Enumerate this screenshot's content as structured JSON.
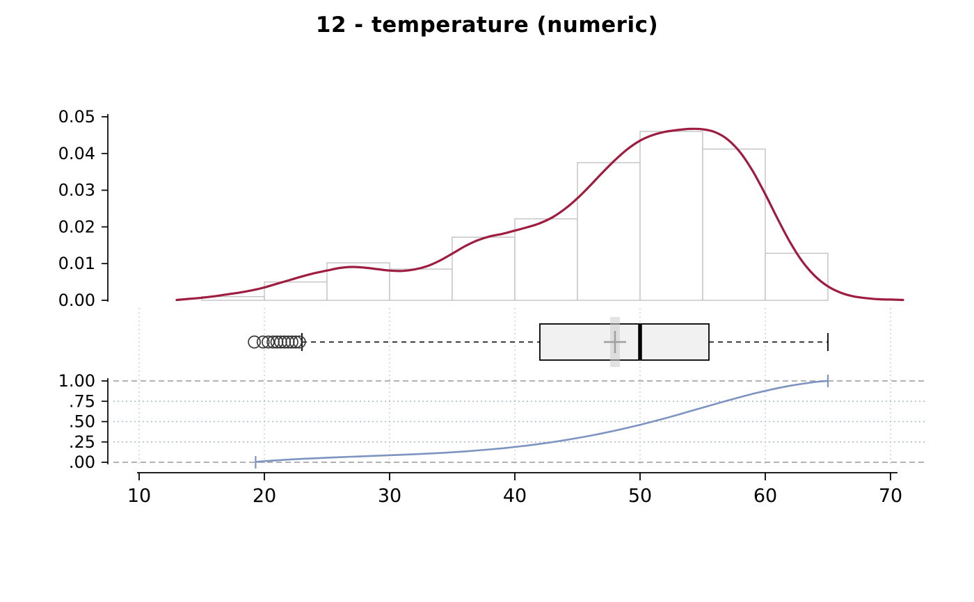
{
  "chart_data": [
    {
      "panel": "histogram_with_density",
      "type": "bar",
      "title": "12 - temperature (numeric)",
      "xlim": [
        10,
        72
      ],
      "ylim": [
        0,
        0.05
      ],
      "grid": false,
      "y_ticks": [
        {
          "value": 0.0,
          "label": "0.00"
        },
        {
          "value": 0.01,
          "label": "0.01"
        },
        {
          "value": 0.02,
          "label": "0.02"
        },
        {
          "value": 0.03,
          "label": "0.03"
        },
        {
          "value": 0.04,
          "label": "0.04"
        },
        {
          "value": 0.05,
          "label": "0.05"
        }
      ],
      "bar_fill": "#ffffff",
      "bar_stroke": "#c6c6c6",
      "bins": [
        {
          "x0": 15,
          "x1": 20,
          "density": 0.001
        },
        {
          "x0": 20,
          "x1": 25,
          "density": 0.005
        },
        {
          "x0": 25,
          "x1": 30,
          "density": 0.0102
        },
        {
          "x0": 30,
          "x1": 35,
          "density": 0.0085
        },
        {
          "x0": 35,
          "x1": 40,
          "density": 0.0172
        },
        {
          "x0": 40,
          "x1": 45,
          "density": 0.0222
        },
        {
          "x0": 45,
          "x1": 50,
          "density": 0.0375
        },
        {
          "x0": 50,
          "x1": 55,
          "density": 0.046
        },
        {
          "x0": 55,
          "x1": 60,
          "density": 0.0412
        },
        {
          "x0": 60,
          "x1": 65,
          "density": 0.0128
        }
      ],
      "density_curve": {
        "color": "#9e1c3f",
        "points": [
          [
            13,
            0.0001
          ],
          [
            14,
            0.0004
          ],
          [
            15,
            0.0007
          ],
          [
            16,
            0.0011
          ],
          [
            17,
            0.0016
          ],
          [
            18,
            0.0021
          ],
          [
            19,
            0.0027
          ],
          [
            20,
            0.0035
          ],
          [
            21,
            0.0045
          ],
          [
            22,
            0.0055
          ],
          [
            23,
            0.0065
          ],
          [
            24,
            0.0074
          ],
          [
            25,
            0.0081
          ],
          [
            26,
            0.0088
          ],
          [
            27,
            0.0091
          ],
          [
            28,
            0.0089
          ],
          [
            29,
            0.0085
          ],
          [
            30,
            0.0081
          ],
          [
            31,
            0.008
          ],
          [
            32,
            0.0084
          ],
          [
            33,
            0.0093
          ],
          [
            34,
            0.0108
          ],
          [
            35,
            0.0127
          ],
          [
            36,
            0.0147
          ],
          [
            37,
            0.0163
          ],
          [
            38,
            0.0174
          ],
          [
            39,
            0.0181
          ],
          [
            40,
            0.019
          ],
          [
            41,
            0.0199
          ],
          [
            42,
            0.021
          ],
          [
            43,
            0.0226
          ],
          [
            44,
            0.0249
          ],
          [
            45,
            0.0278
          ],
          [
            46,
            0.0312
          ],
          [
            47,
            0.0348
          ],
          [
            48,
            0.0382
          ],
          [
            49,
            0.0412
          ],
          [
            50,
            0.0435
          ],
          [
            51,
            0.045
          ],
          [
            52,
            0.0459
          ],
          [
            53,
            0.0464
          ],
          [
            54,
            0.0467
          ],
          [
            55,
            0.0466
          ],
          [
            56,
            0.0458
          ],
          [
            57,
            0.0438
          ],
          [
            58,
            0.0403
          ],
          [
            59,
            0.0352
          ],
          [
            60,
            0.0289
          ],
          [
            61,
            0.0221
          ],
          [
            62,
            0.0157
          ],
          [
            63,
            0.0104
          ],
          [
            64,
            0.0065
          ],
          [
            65,
            0.0038
          ],
          [
            66,
            0.0021
          ],
          [
            67,
            0.0011
          ],
          [
            68,
            0.0006
          ],
          [
            69,
            0.0003
          ],
          [
            70,
            0.0002
          ],
          [
            71,
            0.0001
          ]
        ]
      }
    },
    {
      "panel": "boxplot",
      "type": "boxplot",
      "outliers": [
        19.2,
        19.9,
        20.3,
        20.7,
        21.0,
        21.3,
        21.6,
        21.9,
        22.2,
        22.5,
        22.8
      ],
      "whisker_low": 23,
      "q1": 42,
      "median": 50,
      "q3": 55.5,
      "whisker_high": 65,
      "mean": 48,
      "box_fill": "#f1f1f1",
      "box_stroke": "#000000",
      "outlier_stroke": "#3a3a3a",
      "mean_marker_color": "#9f9f9f",
      "mean_band_color": "#cccccc"
    },
    {
      "panel": "ecdf",
      "type": "line",
      "color": "#7d94c1",
      "ylim": [
        0,
        1
      ],
      "y_ticks": [
        {
          "value": 0,
          "label": ".00"
        },
        {
          "value": 0.25,
          "label": ".25"
        },
        {
          "value": 0.5,
          "label": ".50"
        },
        {
          "value": 0.75,
          "label": ".75"
        },
        {
          "value": 1,
          "label": "1.00"
        }
      ],
      "points": [
        [
          19.3,
          0.004
        ],
        [
          20,
          0.014
        ],
        [
          21,
          0.024
        ],
        [
          22,
          0.033
        ],
        [
          23,
          0.042
        ],
        [
          24,
          0.049
        ],
        [
          25,
          0.056
        ],
        [
          26,
          0.062
        ],
        [
          27,
          0.068
        ],
        [
          28,
          0.074
        ],
        [
          29,
          0.08
        ],
        [
          30,
          0.086
        ],
        [
          31,
          0.092
        ],
        [
          32,
          0.099
        ],
        [
          33,
          0.106
        ],
        [
          34,
          0.114
        ],
        [
          35,
          0.123
        ],
        [
          36,
          0.133
        ],
        [
          37,
          0.145
        ],
        [
          38,
          0.158
        ],
        [
          39,
          0.172
        ],
        [
          40,
          0.188
        ],
        [
          41,
          0.206
        ],
        [
          42,
          0.226
        ],
        [
          43,
          0.248
        ],
        [
          44,
          0.272
        ],
        [
          45,
          0.298
        ],
        [
          46,
          0.326
        ],
        [
          47,
          0.356
        ],
        [
          48,
          0.389
        ],
        [
          49,
          0.424
        ],
        [
          50,
          0.461
        ],
        [
          51,
          0.5
        ],
        [
          52,
          0.541
        ],
        [
          53,
          0.584
        ],
        [
          54,
          0.628
        ],
        [
          55,
          0.672
        ],
        [
          56,
          0.716
        ],
        [
          57,
          0.76
        ],
        [
          58,
          0.802
        ],
        [
          59,
          0.842
        ],
        [
          60,
          0.878
        ],
        [
          61,
          0.912
        ],
        [
          62,
          0.942
        ],
        [
          63,
          0.966
        ],
        [
          63.5,
          0.977
        ],
        [
          64,
          0.987
        ],
        [
          64.5,
          0.995
        ],
        [
          65,
          1.0
        ]
      ],
      "end_markers": [
        [
          19.3,
          0
        ],
        [
          65,
          1
        ]
      ]
    }
  ],
  "x_axis": {
    "ticks": [
      10,
      20,
      30,
      40,
      50,
      60,
      70
    ],
    "labels": [
      "10",
      "20",
      "30",
      "40",
      "50",
      "60",
      "70"
    ]
  },
  "grid": {
    "vertical_dotted_color": "#c9c9c9",
    "horizontal_dashed_color": "#999999",
    "horizontal_dotted_color": "#aab7cd"
  },
  "colors": {
    "background": "#ffffff",
    "axis": "#000000",
    "density": "#9e1c3f",
    "ecdf": "#7d94c1"
  }
}
